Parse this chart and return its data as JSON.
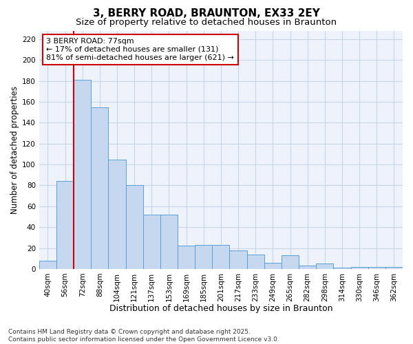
{
  "title": "3, BERRY ROAD, BRAUNTON, EX33 2EY",
  "subtitle": "Size of property relative to detached houses in Braunton",
  "xlabel": "Distribution of detached houses by size in Braunton",
  "ylabel": "Number of detached properties",
  "categories": [
    "40sqm",
    "56sqm",
    "72sqm",
    "88sqm",
    "104sqm",
    "121sqm",
    "137sqm",
    "153sqm",
    "169sqm",
    "185sqm",
    "201sqm",
    "217sqm",
    "233sqm",
    "249sqm",
    "265sqm",
    "282sqm",
    "298sqm",
    "314sqm",
    "330sqm",
    "346sqm",
    "362sqm"
  ],
  "values": [
    8,
    84,
    181,
    155,
    105,
    80,
    52,
    52,
    22,
    23,
    23,
    18,
    14,
    6,
    13,
    3,
    5,
    1,
    2,
    2,
    2
  ],
  "bar_color": "#c5d8f0",
  "bar_edge_color": "#5a9fd4",
  "vline_x": 2.0,
  "vline_color": "#cc0000",
  "annotation_text": "3 BERRY ROAD: 77sqm\n← 17% of detached houses are smaller (131)\n81% of semi-detached houses are larger (621) →",
  "annotation_box_color": "#ffffff",
  "annotation_box_edge_color": "#cc0000",
  "ylim": [
    0,
    228
  ],
  "yticks": [
    0,
    20,
    40,
    60,
    80,
    100,
    120,
    140,
    160,
    180,
    200,
    220
  ],
  "background_color": "#ffffff",
  "plot_bg_color": "#eef3fb",
  "grid_color": "#c8d4e8",
  "footer_text": "Contains HM Land Registry data © Crown copyright and database right 2025.\nContains public sector information licensed under the Open Government Licence v3.0.",
  "title_fontsize": 11,
  "subtitle_fontsize": 9.5,
  "xlabel_fontsize": 9,
  "ylabel_fontsize": 8.5,
  "tick_fontsize": 7.5,
  "annotation_fontsize": 8,
  "footer_fontsize": 6.5
}
